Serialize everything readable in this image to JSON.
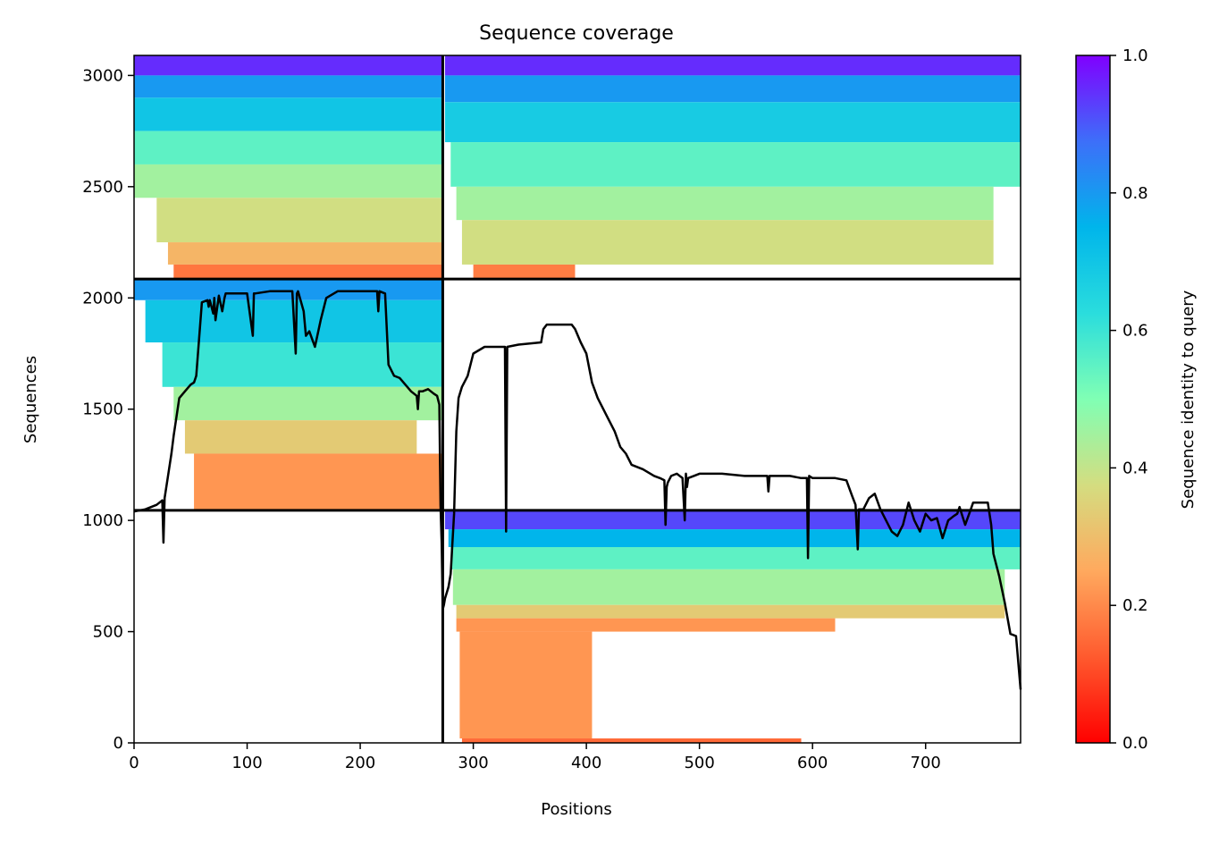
{
  "chart_data": {
    "type": "heatmap",
    "title": "Sequence coverage",
    "xlabel": "Positions",
    "ylabel": "Sequences",
    "xlim": [
      0,
      784
    ],
    "ylim": [
      0,
      3090
    ],
    "xticks": [
      "0",
      "100",
      "200",
      "300",
      "400",
      "500",
      "600",
      "700"
    ],
    "xtick_values": [
      0,
      100,
      200,
      300,
      400,
      500,
      600,
      700
    ],
    "yticks": [
      "0",
      "500",
      "1000",
      "1500",
      "2000",
      "2500",
      "3000"
    ],
    "ytick_values": [
      0,
      500,
      1000,
      1500,
      2000,
      2500,
      3000
    ],
    "colorbar": {
      "label": "Sequence identity to query",
      "colormap": "rainbow_r",
      "range": [
        0.0,
        1.0
      ],
      "ticks": [
        "0.0",
        "0.2",
        "0.4",
        "0.6",
        "0.8",
        "1.0"
      ],
      "tick_values": [
        0.0,
        0.2,
        0.4,
        0.6,
        0.8,
        1.0
      ]
    },
    "segment_dividers": {
      "x": [
        273
      ],
      "y": [
        1045,
        2085
      ]
    },
    "blocks": [
      {
        "x_range": [
          0,
          273
        ],
        "y_range": [
          2085,
          3090
        ],
        "bands": [
          {
            "y": [
              3000,
              3090
            ],
            "identity": 0.95,
            "x": [
              0,
              273
            ]
          },
          {
            "y": [
              2900,
              3000
            ],
            "identity": 0.8,
            "x": [
              0,
              273
            ]
          },
          {
            "y": [
              2750,
              2900
            ],
            "identity": 0.7,
            "x": [
              0,
              273
            ]
          },
          {
            "y": [
              2600,
              2750
            ],
            "identity": 0.55,
            "x": [
              0,
              273
            ]
          },
          {
            "y": [
              2450,
              2600
            ],
            "identity": 0.45,
            "x": [
              0,
              273
            ]
          },
          {
            "y": [
              2250,
              2450
            ],
            "identity": 0.38,
            "x": [
              20,
              273
            ]
          },
          {
            "y": [
              2150,
              2250
            ],
            "identity": 0.28,
            "x": [
              30,
              273
            ]
          },
          {
            "y": [
              2085,
              2150
            ],
            "identity": 0.17,
            "x": [
              35,
              273
            ]
          }
        ]
      },
      {
        "x_range": [
          273,
          784
        ],
        "y_range": [
          2085,
          3090
        ],
        "bands": [
          {
            "y": [
              3000,
              3090
            ],
            "identity": 0.95,
            "x": [
              275,
              784
            ]
          },
          {
            "y": [
              2880,
              3000
            ],
            "identity": 0.8,
            "x": [
              275,
              784
            ]
          },
          {
            "y": [
              2700,
              2880
            ],
            "identity": 0.68,
            "x": [
              275,
              784
            ]
          },
          {
            "y": [
              2500,
              2700
            ],
            "identity": 0.55,
            "x": [
              280,
              784
            ]
          },
          {
            "y": [
              2350,
              2500
            ],
            "identity": 0.45,
            "x": [
              285,
              760
            ]
          },
          {
            "y": [
              2150,
              2350
            ],
            "identity": 0.38,
            "x": [
              290,
              760
            ]
          },
          {
            "y": [
              2085,
              2150
            ],
            "identity": 0.18,
            "x": [
              300,
              390
            ]
          }
        ]
      },
      {
        "x_range": [
          0,
          273
        ],
        "y_range": [
          1045,
          2085
        ],
        "bands": [
          {
            "y": [
              1990,
              2085
            ],
            "identity": 0.8,
            "x": [
              0,
              273
            ]
          },
          {
            "y": [
              1800,
              1990
            ],
            "identity": 0.7,
            "x": [
              10,
              273
            ]
          },
          {
            "y": [
              1600,
              1800
            ],
            "identity": 0.6,
            "x": [
              25,
              273
            ]
          },
          {
            "y": [
              1450,
              1600
            ],
            "identity": 0.45,
            "x": [
              35,
              273
            ]
          },
          {
            "y": [
              1300,
              1450
            ],
            "identity": 0.33,
            "x": [
              45,
              250
            ]
          },
          {
            "y": [
              1045,
              1300
            ],
            "identity": 0.22,
            "x": [
              53,
              273
            ]
          }
        ]
      },
      {
        "x_range": [
          273,
          784
        ],
        "y_range": [
          0,
          1045
        ],
        "bands": [
          {
            "y": [
              960,
              1045
            ],
            "identity": 0.92,
            "x": [
              275,
              784
            ]
          },
          {
            "y": [
              880,
              960
            ],
            "identity": 0.75,
            "x": [
              278,
              784
            ]
          },
          {
            "y": [
              780,
              880
            ],
            "identity": 0.55,
            "x": [
              280,
              784
            ]
          },
          {
            "y": [
              620,
              780
            ],
            "identity": 0.45,
            "x": [
              282,
              770
            ]
          },
          {
            "y": [
              560,
              620
            ],
            "identity": 0.33,
            "x": [
              285,
              770
            ]
          },
          {
            "y": [
              500,
              560
            ],
            "identity": 0.22,
            "x": [
              285,
              620
            ]
          },
          {
            "y": [
              20,
              500
            ],
            "identity": 0.22,
            "x": [
              288,
              405
            ]
          },
          {
            "y": [
              0,
              20
            ],
            "identity": 0.15,
            "x": [
              290,
              590
            ]
          }
        ]
      }
    ],
    "coverage_line": {
      "color": "#000000",
      "x": [
        0,
        10,
        20,
        25,
        26,
        27,
        30,
        33,
        35,
        40,
        45,
        50,
        53,
        55,
        60,
        65,
        66,
        67,
        70,
        71,
        72,
        75,
        78,
        80,
        81,
        85,
        100,
        105,
        106,
        107,
        120,
        140,
        143,
        144,
        145,
        150,
        152,
        155,
        160,
        165,
        170,
        180,
        200,
        215,
        216,
        217,
        222,
        225,
        230,
        235,
        245,
        250,
        251,
        252,
        255,
        260,
        265,
        268,
        270,
        271,
        272,
        273,
        274,
        275,
        278,
        280,
        283,
        285,
        287,
        290,
        295,
        300,
        310,
        325,
        328,
        329,
        330,
        340,
        360,
        362,
        365,
        370,
        380,
        387,
        390,
        395,
        400,
        405,
        410,
        415,
        420,
        425,
        430,
        435,
        440,
        450,
        460,
        465,
        469,
        470,
        471,
        472,
        475,
        480,
        485,
        487,
        488,
        489,
        490,
        495,
        500,
        520,
        540,
        560,
        561,
        562,
        580,
        590,
        595,
        596,
        597,
        600,
        620,
        630,
        635,
        638,
        640,
        641,
        645,
        650,
        655,
        660,
        665,
        670,
        675,
        680,
        685,
        690,
        695,
        700,
        705,
        710,
        715,
        720,
        725,
        728,
        730,
        735,
        740,
        742,
        745,
        750,
        755,
        758,
        760,
        765,
        770,
        775,
        780,
        784
      ],
      "y": [
        1040,
        1050,
        1070,
        1090,
        900,
        1100,
        1200,
        1300,
        1380,
        1550,
        1580,
        1610,
        1620,
        1650,
        1980,
        1990,
        1960,
        1990,
        1930,
        2000,
        1900,
        2010,
        1940,
        2000,
        2020,
        2020,
        2020,
        1830,
        2020,
        2020,
        2030,
        2030,
        1750,
        2020,
        2030,
        1940,
        1830,
        1850,
        1780,
        1900,
        2000,
        2030,
        2030,
        2030,
        1940,
        2030,
        2020,
        1700,
        1650,
        1640,
        1580,
        1560,
        1500,
        1580,
        1580,
        1590,
        1570,
        1560,
        1520,
        1070,
        900,
        600,
        620,
        650,
        700,
        760,
        1030,
        1400,
        1550,
        1600,
        1650,
        1750,
        1780,
        1780,
        1780,
        950,
        1780,
        1790,
        1800,
        1860,
        1880,
        1880,
        1880,
        1880,
        1860,
        1800,
        1750,
        1620,
        1550,
        1500,
        1450,
        1400,
        1330,
        1300,
        1250,
        1230,
        1200,
        1190,
        1180,
        980,
        1150,
        1170,
        1200,
        1210,
        1190,
        1000,
        1210,
        1150,
        1190,
        1200,
        1210,
        1210,
        1200,
        1200,
        1130,
        1200,
        1200,
        1190,
        1190,
        830,
        1200,
        1190,
        1190,
        1180,
        1110,
        1070,
        870,
        1050,
        1050,
        1100,
        1120,
        1050,
        1000,
        950,
        930,
        980,
        1080,
        1000,
        950,
        1030,
        1000,
        1010,
        920,
        1000,
        1020,
        1030,
        1060,
        980,
        1050,
        1080,
        1080,
        1080,
        1080,
        980,
        850,
        750,
        630,
        490,
        480,
        240
      ]
    }
  }
}
